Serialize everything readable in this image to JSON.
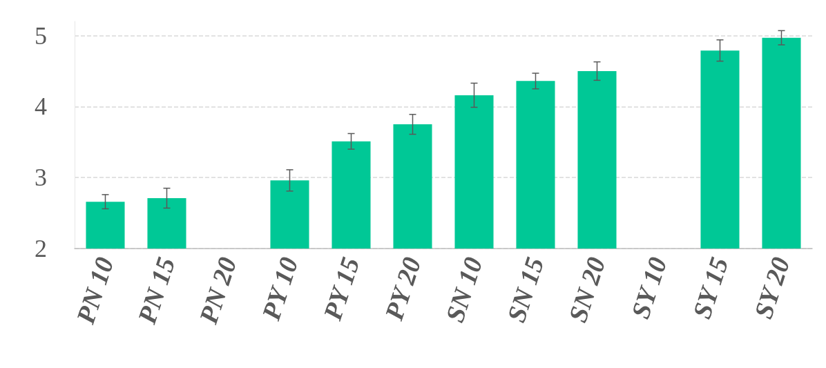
{
  "chart_data": {
    "type": "bar",
    "categories": [
      "PN 10",
      "PN 15",
      "PN 20",
      "PY 10",
      "PY 15",
      "PY 20",
      "SN 10",
      "SN 15",
      "SN 20",
      "SY 10",
      "SY 15",
      "SY 20"
    ],
    "values": [
      2.66,
      2.71,
      null,
      2.96,
      3.51,
      3.75,
      4.16,
      4.36,
      4.5,
      null,
      4.79,
      4.97
    ],
    "errors": [
      0.1,
      0.14,
      null,
      0.15,
      0.11,
      0.14,
      0.17,
      0.11,
      0.13,
      null,
      0.15,
      0.1
    ],
    "color": "#00c896",
    "ylim": [
      2,
      5.2
    ],
    "yticks": [
      2,
      3,
      4,
      5
    ],
    "grid": "y"
  }
}
